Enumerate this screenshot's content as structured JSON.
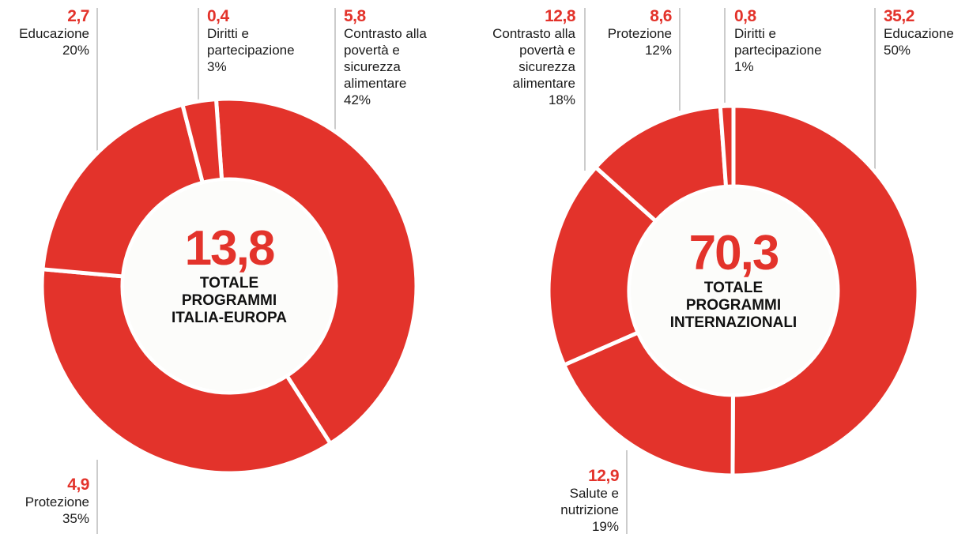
{
  "chart_data": [
    {
      "type": "pie",
      "donut": true,
      "color": "#e3332b",
      "categories": [
        "Contrasto alla povertà e sicurezza alimentare",
        "Protezione",
        "Educazione",
        "Diritti e partecipazione"
      ],
      "values": [
        5.8,
        4.9,
        2.7,
        0.4
      ],
      "value_labels": [
        "5,8",
        "4,9",
        "2,7",
        "0,4"
      ],
      "percentages": [
        42,
        35,
        20,
        3
      ],
      "percentage_labels": [
        "42%",
        "35%",
        "20%",
        "3%"
      ],
      "total": 13.8,
      "total_label": "13,8",
      "center_label": [
        "TOTALE",
        "PROGRAMMI",
        "ITALIA-EUROPA"
      ]
    },
    {
      "type": "pie",
      "donut": true,
      "color": "#e3332b",
      "categories": [
        "Educazione",
        "Salute e nutrizione",
        "Contrasto alla povertà e sicurezza alimentare",
        "Protezione",
        "Diritti e partecipazione"
      ],
      "values": [
        35.2,
        12.9,
        12.8,
        8.6,
        0.8
      ],
      "value_labels": [
        "35,2",
        "12,9",
        "12,8",
        "8,6",
        "0,8"
      ],
      "percentages": [
        50,
        19,
        18,
        12,
        1
      ],
      "percentage_labels": [
        "50%",
        "19%",
        "18%",
        "12%",
        "1%"
      ],
      "total": 70.3,
      "total_label": "70,3",
      "center_label": [
        "TOTALE",
        "PROGRAMMI",
        "INTERNAZIONALI"
      ]
    }
  ]
}
